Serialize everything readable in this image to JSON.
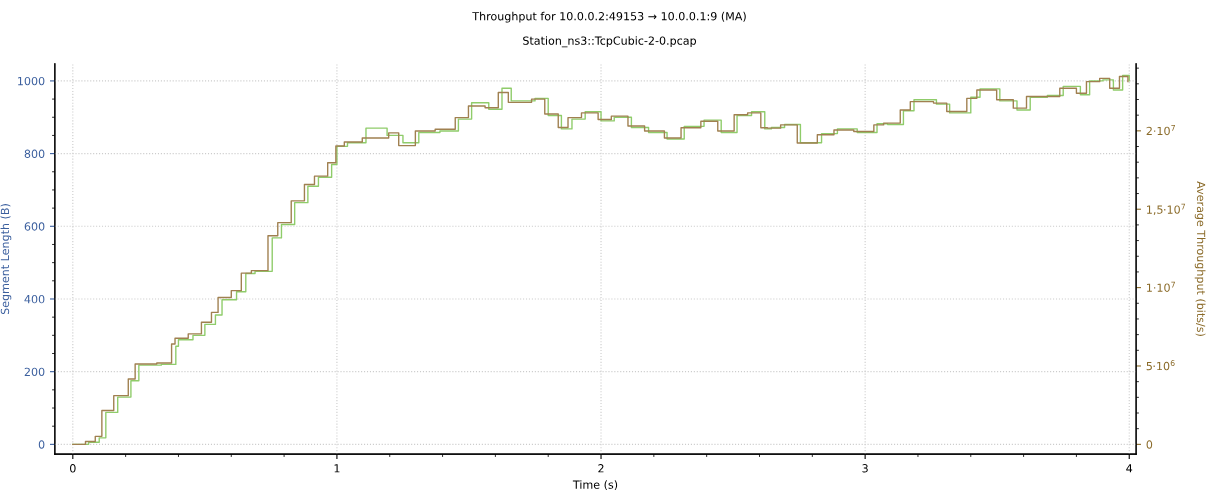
{
  "chart_data": {
    "type": "step",
    "title": "Throughput for 10.0.0.2:49153 → 10.0.0.1:9 (MA)",
    "subtitle": "Station_ns3::TcpCubic-2-0.pcap",
    "xlabel": "Time (s)",
    "ylabel": "Segment Length (B)",
    "y2label": "Average Throughput (bits/s)",
    "xlim": [
      -0.068,
      4.026
    ],
    "xticks": [
      0,
      1,
      2,
      3,
      4
    ],
    "ylim": [
      -27,
      1047
    ],
    "yticks": [
      0,
      200,
      400,
      600,
      800,
      1000
    ],
    "y2lim": [
      -626000,
      24275000
    ],
    "y2ticks": [
      0,
      {
        "value": 5000000,
        "label": "5·10$^{6}$"
      },
      {
        "value": 10000000,
        "label": "1·10$^{7}$"
      },
      {
        "value": 15000000,
        "label": "1,5·10$^{7}$"
      },
      {
        "value": 20000000,
        "label": "2·10$^{7}$"
      }
    ],
    "grid": true,
    "legend": false,
    "line_style": "solid",
    "marker": "none",
    "series": [
      {
        "color": "#8fcc6a",
        "x": [
          0,
          0.06,
          0.1,
          0.125,
          0.17,
          0.22,
          0.25,
          0.335,
          0.39,
          0.4,
          0.455,
          0.5,
          0.54,
          0.565,
          0.62,
          0.655,
          0.69,
          0.755,
          0.79,
          0.84,
          0.89,
          0.93,
          0.98,
          1.0,
          1.04,
          1.11,
          1.19,
          1.25,
          1.31,
          1.39,
          1.46,
          1.51,
          1.575,
          1.625,
          1.66,
          1.75,
          1.8,
          1.85,
          1.89,
          1.94,
          2.0,
          2.05,
          2.115,
          2.18,
          2.25,
          2.315,
          2.39,
          2.455,
          2.515,
          2.57,
          2.62,
          2.645,
          2.695,
          2.755,
          2.835,
          2.895,
          2.97,
          3.045,
          3.085,
          3.145,
          3.185,
          3.27,
          3.32,
          3.4,
          3.435,
          3.51,
          3.575,
          3.625,
          3.69,
          3.75,
          3.815,
          3.85,
          3.9,
          3.94,
          3.975,
          4.0
        ],
        "values": [
          0,
          6,
          18,
          88,
          130,
          175,
          218,
          220,
          270,
          288,
          300,
          330,
          356,
          398,
          420,
          470,
          476,
          568,
          605,
          665,
          710,
          735,
          770,
          820,
          830,
          870,
          850,
          830,
          858,
          862,
          895,
          940,
          922,
          980,
          945,
          952,
          905,
          868,
          895,
          915,
          890,
          900,
          872,
          858,
          840,
          875,
          892,
          858,
          905,
          915,
          868,
          872,
          880,
          830,
          855,
          868,
          858,
          882,
          880,
          918,
          948,
          936,
          912,
          955,
          978,
          945,
          920,
          955,
          960,
          985,
          962,
          1000,
          1003,
          975,
          1015,
          1000
        ]
      },
      {
        "color": "#a08050",
        "x": [
          0,
          0.048,
          0.085,
          0.11,
          0.155,
          0.21,
          0.236,
          0.318,
          0.374,
          0.387,
          0.437,
          0.487,
          0.525,
          0.55,
          0.6,
          0.638,
          0.676,
          0.739,
          0.776,
          0.827,
          0.877,
          0.915,
          0.965,
          0.996,
          1.028,
          1.096,
          1.196,
          1.234,
          1.297,
          1.372,
          1.448,
          1.498,
          1.561,
          1.611,
          1.649,
          1.737,
          1.787,
          1.838,
          1.875,
          1.926,
          1.989,
          2.039,
          2.102,
          2.165,
          2.24,
          2.303,
          2.378,
          2.442,
          2.504,
          2.555,
          2.605,
          2.63,
          2.68,
          2.743,
          2.819,
          2.882,
          2.957,
          3.033,
          3.07,
          3.133,
          3.171,
          3.259,
          3.309,
          3.385,
          3.423,
          3.498,
          3.561,
          3.611,
          3.674,
          3.737,
          3.8,
          3.838,
          3.888,
          3.926,
          3.963,
          3.995
        ],
        "values": [
          0,
          8,
          22,
          93,
          134,
          180,
          221,
          224,
          276,
          292,
          304,
          336,
          363,
          404,
          423,
          471,
          478,
          574,
          610,
          670,
          715,
          738,
          775,
          821,
          832,
          843,
          857,
          822,
          862,
          867,
          899,
          931,
          926,
          968,
          941,
          950,
          909,
          872,
          899,
          912,
          894,
          903,
          876,
          862,
          843,
          871,
          889,
          862,
          907,
          912,
          871,
          870,
          879,
          829,
          852,
          865,
          861,
          879,
          884,
          920,
          943,
          939,
          916,
          952,
          975,
          948,
          925,
          957,
          957,
          980,
          966,
          998,
          1007,
          980,
          1012,
          998
        ]
      }
    ]
  }
}
